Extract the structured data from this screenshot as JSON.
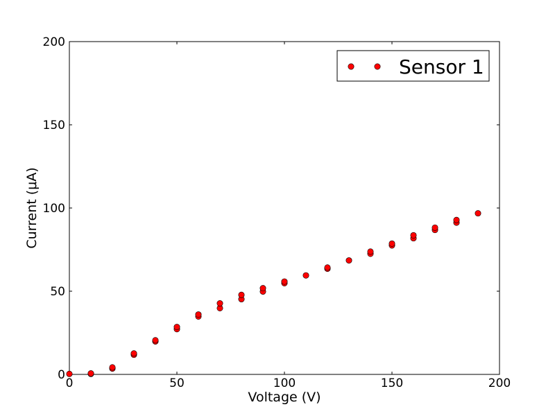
{
  "chart_data": {
    "type": "scatter",
    "xlabel": "Voltage (V)",
    "ylabel": "Current (μA)",
    "xlim": [
      0,
      200
    ],
    "ylim": [
      0,
      200
    ],
    "x_ticks": [
      "0",
      "50",
      "100",
      "150",
      "200"
    ],
    "y_ticks": [
      "0",
      "50",
      "100",
      "150",
      "200"
    ],
    "grid": false,
    "legend_position": "top-right",
    "marker_color": "#ff0000",
    "marker_edge_color": "#000000",
    "series": [
      {
        "name": "Sensor 1",
        "x": [
          0,
          10,
          10,
          20,
          20,
          30,
          30,
          40,
          40,
          50,
          50,
          60,
          60,
          70,
          70,
          80,
          80,
          90,
          90,
          100,
          100,
          110,
          120,
          120,
          130,
          140,
          140,
          150,
          150,
          160,
          160,
          170,
          170,
          180,
          180,
          190
        ],
        "y": [
          0.3,
          0.3,
          0.6,
          3.5,
          4.2,
          11.8,
          12.6,
          19.8,
          20.5,
          27.2,
          28.5,
          34.8,
          36.0,
          39.8,
          42.7,
          45.2,
          47.8,
          49.8,
          51.8,
          54.8,
          55.8,
          59.5,
          63.5,
          64.2,
          68.5,
          72.5,
          73.8,
          77.5,
          78.6,
          81.8,
          83.6,
          86.8,
          88.2,
          91.2,
          92.8,
          96.8
        ]
      }
    ]
  }
}
